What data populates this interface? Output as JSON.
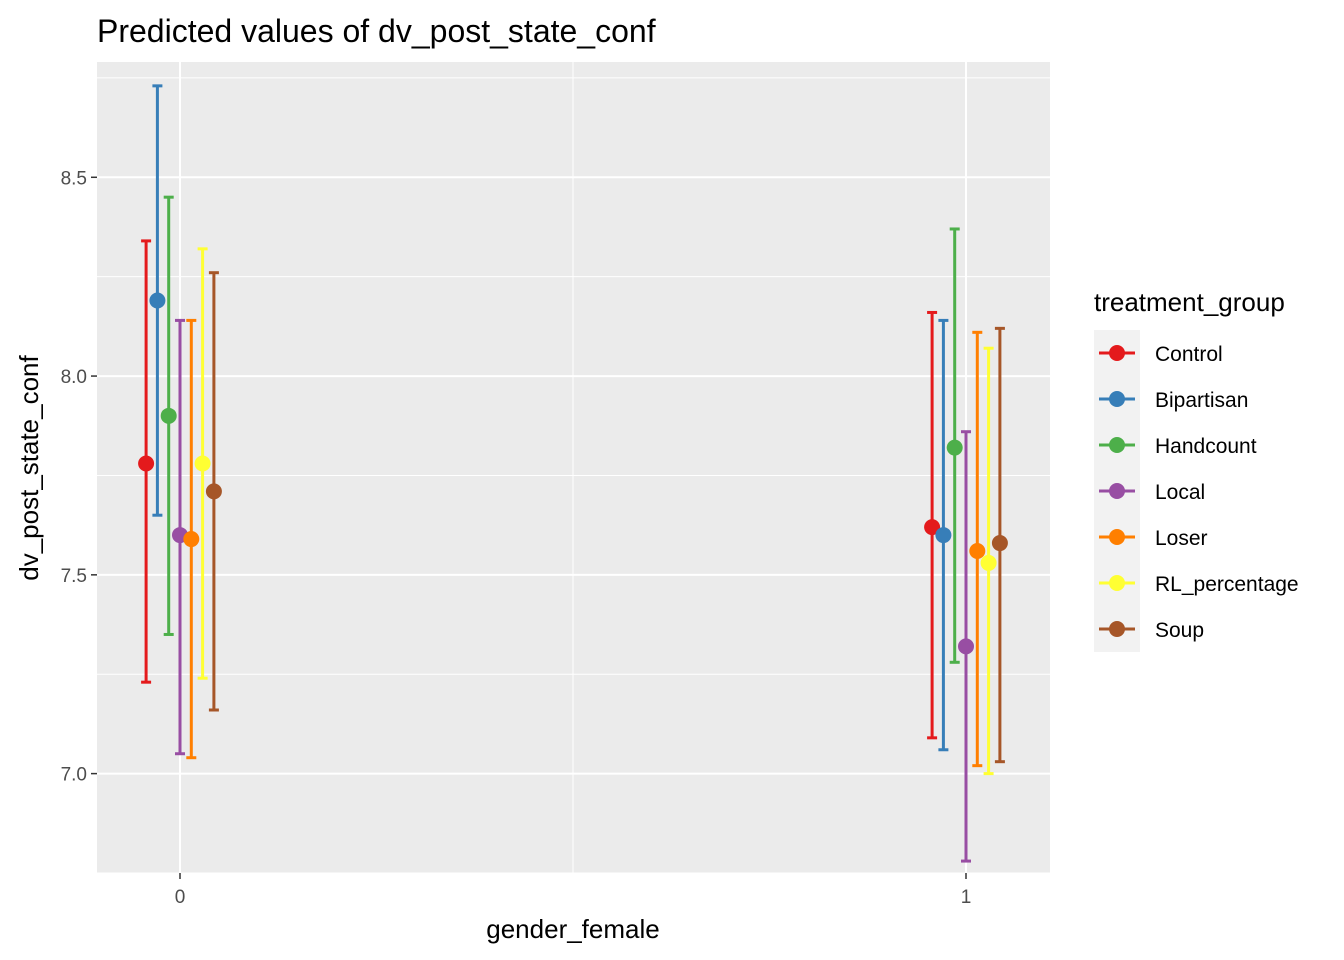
{
  "chart_data": {
    "type": "scatter",
    "subtype": "point-range with error bars",
    "title": "Predicted values of dv_post_state_conf",
    "xlabel": "gender_female",
    "ylabel": "dv_post_state_conf",
    "x_categories": [
      "0",
      "1"
    ],
    "ylim": [
      6.75,
      8.79
    ],
    "y_ticks": [
      "7.0",
      "7.5",
      "8.0",
      "8.5"
    ],
    "y_tick_values": [
      7.0,
      7.5,
      8.0,
      8.5
    ],
    "grid": true,
    "legend": {
      "title": "treatment_group",
      "placement": "right"
    },
    "series": [
      {
        "name": "Control",
        "color": "#e41a1c",
        "points": [
          {
            "x": "0",
            "y": 7.78,
            "low": 7.23,
            "high": 8.34
          },
          {
            "x": "1",
            "y": 7.62,
            "low": 7.09,
            "high": 8.16
          }
        ]
      },
      {
        "name": "Bipartisan",
        "color": "#377eb8",
        "points": [
          {
            "x": "0",
            "y": 8.19,
            "low": 7.65,
            "high": 8.73
          },
          {
            "x": "1",
            "y": 7.6,
            "low": 7.06,
            "high": 8.14
          }
        ]
      },
      {
        "name": "Handcount",
        "color": "#4daf4a",
        "points": [
          {
            "x": "0",
            "y": 7.9,
            "low": 7.35,
            "high": 8.45
          },
          {
            "x": "1",
            "y": 7.82,
            "low": 7.28,
            "high": 8.37
          }
        ]
      },
      {
        "name": "Local",
        "color": "#984ea3",
        "points": [
          {
            "x": "0",
            "y": 7.6,
            "low": 7.05,
            "high": 8.14
          },
          {
            "x": "1",
            "y": 7.32,
            "low": 6.78,
            "high": 7.86
          }
        ]
      },
      {
        "name": "Loser",
        "color": "#ff7f00",
        "points": [
          {
            "x": "0",
            "y": 7.59,
            "low": 7.04,
            "high": 8.14
          },
          {
            "x": "1",
            "y": 7.56,
            "low": 7.02,
            "high": 8.11
          }
        ]
      },
      {
        "name": "RL_percentage",
        "color": "#ffff33",
        "points": [
          {
            "x": "0",
            "y": 7.78,
            "low": 7.24,
            "high": 8.32
          },
          {
            "x": "1",
            "y": 7.53,
            "low": 7.0,
            "high": 8.07
          }
        ]
      },
      {
        "name": "Soup",
        "color": "#a65628",
        "points": [
          {
            "x": "0",
            "y": 7.71,
            "low": 7.16,
            "high": 8.26
          },
          {
            "x": "1",
            "y": 7.58,
            "low": 7.03,
            "high": 8.12
          }
        ]
      }
    ]
  }
}
